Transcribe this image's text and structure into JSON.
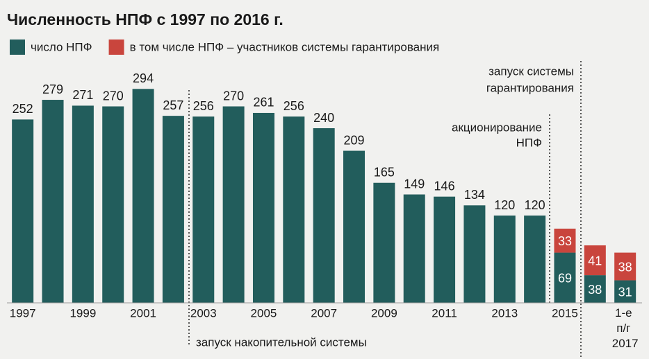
{
  "chart_data": {
    "type": "stacked_bar",
    "title": "Численность НПФ с 1997 по 2016 г.",
    "categories": [
      "1997",
      null,
      "1999",
      null,
      "2001",
      null,
      "2003",
      null,
      "2005",
      null,
      "2007",
      null,
      "2009",
      null,
      "2011",
      null,
      "2013",
      null,
      "2015",
      null,
      "1-е п/г 2017"
    ],
    "series": [
      {
        "name": "число НПФ",
        "color": "#225d5c",
        "values": [
          252,
          279,
          271,
          270,
          294,
          257,
          256,
          270,
          261,
          256,
          240,
          209,
          165,
          149,
          146,
          134,
          120,
          120,
          69,
          38,
          31
        ]
      },
      {
        "name": "в том числе НПФ – участников системы гарантирования",
        "color": "#c9453d",
        "values": [
          null,
          null,
          null,
          null,
          null,
          null,
          null,
          null,
          null,
          null,
          null,
          null,
          null,
          null,
          null,
          null,
          null,
          null,
          33,
          41,
          38
        ]
      }
    ],
    "ylim": [
      0,
      300
    ],
    "annotations": [
      [
        "запуск системы",
        "гарантирования"
      ],
      [
        "акционирование",
        "НПФ"
      ],
      [
        "запуск накопительной системы"
      ]
    ]
  }
}
